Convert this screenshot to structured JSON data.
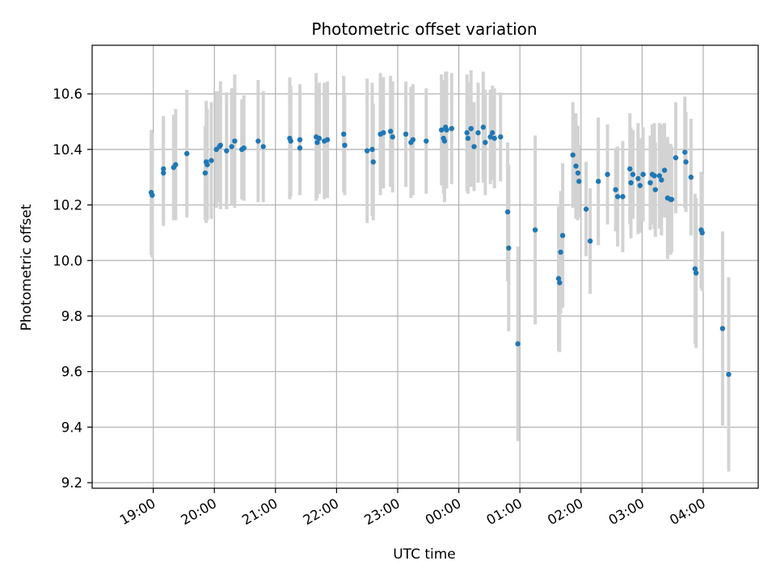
{
  "chart_data": {
    "type": "scatter",
    "title": "Photometric offset variation",
    "xlabel": "UTC time",
    "ylabel": "Photometric offset",
    "grid": true,
    "x_unit": "UTC hour (hours past 00:00 on first night)",
    "xlim": [
      18.0,
      4.9
    ],
    "ylim": [
      9.18,
      10.775
    ],
    "x_tick_labels": [
      "19:00",
      "20:00",
      "21:00",
      "22:00",
      "23:00",
      "00:00",
      "01:00",
      "02:00",
      "03:00",
      "04:00"
    ],
    "y_tick_labels": [
      "9.2",
      "9.4",
      "9.6",
      "9.8",
      "10.0",
      "10.2",
      "10.4",
      "10.6"
    ],
    "colors": {
      "points": "#1f77b4",
      "errorbars": "#d3d3d3",
      "grid": "#b0b0b0"
    },
    "series": [
      {
        "points": [
          [
            "18:58",
            10.245,
            0.225
          ],
          [
            "18:59",
            10.235,
            0.225
          ],
          [
            "19:10",
            10.33,
            0.19
          ],
          [
            "19:10",
            10.315,
            0.19
          ],
          [
            "19:20",
            10.335,
            0.19
          ],
          [
            "19:22",
            10.345,
            0.2
          ],
          [
            "19:33",
            10.385,
            0.23
          ],
          [
            "19:51",
            10.315,
            0.17
          ],
          [
            "19:52",
            10.355,
            0.22
          ],
          [
            "19:53",
            10.345,
            0.2
          ],
          [
            "20:06",
            10.415,
            0.23
          ],
          [
            "19:57",
            10.36,
            0.21
          ],
          [
            "20:02",
            10.4,
            0.21
          ],
          [
            "20:05",
            10.41,
            0.2
          ],
          [
            "20:12",
            10.395,
            0.21
          ],
          [
            "20:17",
            10.41,
            0.21
          ],
          [
            "20:20",
            10.43,
            0.24
          ],
          [
            "20:27",
            10.4,
            0.18
          ],
          [
            "20:29",
            10.405,
            0.19
          ],
          [
            "20:43",
            10.43,
            0.22
          ],
          [
            "20:48",
            10.41,
            0.2
          ],
          [
            "21:14",
            10.44,
            0.22
          ],
          [
            "21:15",
            10.43,
            0.2
          ],
          [
            "21:24",
            10.435,
            0.2
          ],
          [
            "21:24",
            10.405,
            0.15
          ],
          [
            "21:40",
            10.445,
            0.23
          ],
          [
            "21:41",
            10.425,
            0.2
          ],
          [
            "21:43",
            10.44,
            0.2
          ],
          [
            "21:48",
            10.43,
            0.21
          ],
          [
            "21:51",
            10.435,
            0.21
          ],
          [
            "22:07",
            10.455,
            0.21
          ],
          [
            "22:08",
            10.415,
            0.18
          ],
          [
            "22:30",
            10.395,
            0.26
          ],
          [
            "22:35",
            10.4,
            0.24
          ],
          [
            "22:36",
            10.355,
            0.21
          ],
          [
            "22:43",
            10.455,
            0.22
          ],
          [
            "22:46",
            10.46,
            0.2
          ],
          [
            "22:53",
            10.465,
            0.2
          ],
          [
            "22:55",
            10.445,
            0.2
          ],
          [
            "23:08",
            10.455,
            0.19
          ],
          [
            "23:13",
            10.425,
            0.2
          ],
          [
            "23:15",
            10.435,
            0.2
          ],
          [
            "23:28",
            10.43,
            0.19
          ],
          [
            "23:43",
            10.47,
            0.2
          ],
          [
            "23:45",
            10.44,
            0.2
          ],
          [
            "23:46",
            10.43,
            0.22
          ],
          [
            "23:47",
            10.48,
            0.2
          ],
          [
            "23:48",
            10.47,
            0.21
          ],
          [
            "23:53",
            10.475,
            0.2
          ],
          [
            "00:08",
            10.46,
            0.21
          ],
          [
            "00:09",
            10.44,
            0.2
          ],
          [
            "00:12",
            10.475,
            0.21
          ],
          [
            "00:15",
            10.41,
            0.16
          ],
          [
            "00:19",
            10.46,
            0.18
          ],
          [
            "00:24",
            10.48,
            0.2
          ],
          [
            "00:26",
            10.425,
            0.19
          ],
          [
            "00:31",
            10.445,
            0.17
          ],
          [
            "00:33",
            10.46,
            0.17
          ],
          [
            "00:35",
            10.44,
            0.18
          ],
          [
            "00:41",
            10.445,
            0.16
          ],
          [
            "00:48",
            10.175,
            0.25
          ],
          [
            "00:49",
            10.045,
            0.3
          ],
          [
            "00:58",
            9.7,
            0.35
          ],
          [
            "01:15",
            10.11,
            0.34
          ],
          [
            "01:38",
            9.935,
            0.26
          ],
          [
            "01:39",
            9.92,
            0.25
          ],
          [
            "01:40",
            10.03,
            0.22
          ],
          [
            "01:42",
            10.09,
            0.26
          ],
          [
            "01:52",
            10.38,
            0.19
          ],
          [
            "01:55",
            10.34,
            0.19
          ],
          [
            "01:57",
            10.315,
            0.17
          ],
          [
            "01:58",
            10.285,
            0.13
          ],
          [
            "02:05",
            10.185,
            0.17
          ],
          [
            "02:09",
            10.07,
            0.19
          ],
          [
            "02:17",
            10.285,
            0.23
          ],
          [
            "02:26",
            10.31,
            0.18
          ],
          [
            "02:34",
            10.255,
            0.15
          ],
          [
            "02:36",
            10.23,
            0.18
          ],
          [
            "02:41",
            10.23,
            0.2
          ],
          [
            "02:48",
            10.33,
            0.2
          ],
          [
            "02:49",
            10.28,
            0.2
          ],
          [
            "02:51",
            10.31,
            0.16
          ],
          [
            "02:56",
            10.295,
            0.2
          ],
          [
            "02:58",
            10.27,
            0.17
          ],
          [
            "03:01",
            10.31,
            0.17
          ],
          [
            "03:08",
            10.28,
            0.17
          ],
          [
            "03:10",
            10.31,
            0.18
          ],
          [
            "03:12",
            10.305,
            0.19
          ],
          [
            "03:13",
            10.255,
            0.17
          ],
          [
            "03:17",
            10.305,
            0.19
          ],
          [
            "03:19",
            10.29,
            0.2
          ],
          [
            "03:22",
            10.325,
            0.17
          ],
          [
            "03:25",
            10.225,
            0.22
          ],
          [
            "03:28",
            10.22,
            0.2
          ],
          [
            "03:29",
            10.22,
            0.19
          ],
          [
            "03:33",
            10.37,
            0.2
          ],
          [
            "03:42",
            10.39,
            0.2
          ],
          [
            "03:43",
            10.355,
            0.18
          ],
          [
            "03:48",
            10.3,
            0.21
          ],
          [
            "03:52",
            9.97,
            0.27
          ],
          [
            "03:53",
            9.955,
            0.27
          ],
          [
            "03:58",
            10.11,
            0.21
          ],
          [
            "03:59",
            10.1,
            0.21
          ],
          [
            "04:19",
            9.755,
            0.35
          ],
          [
            "04:25",
            9.59,
            0.35
          ]
        ]
      }
    ]
  }
}
